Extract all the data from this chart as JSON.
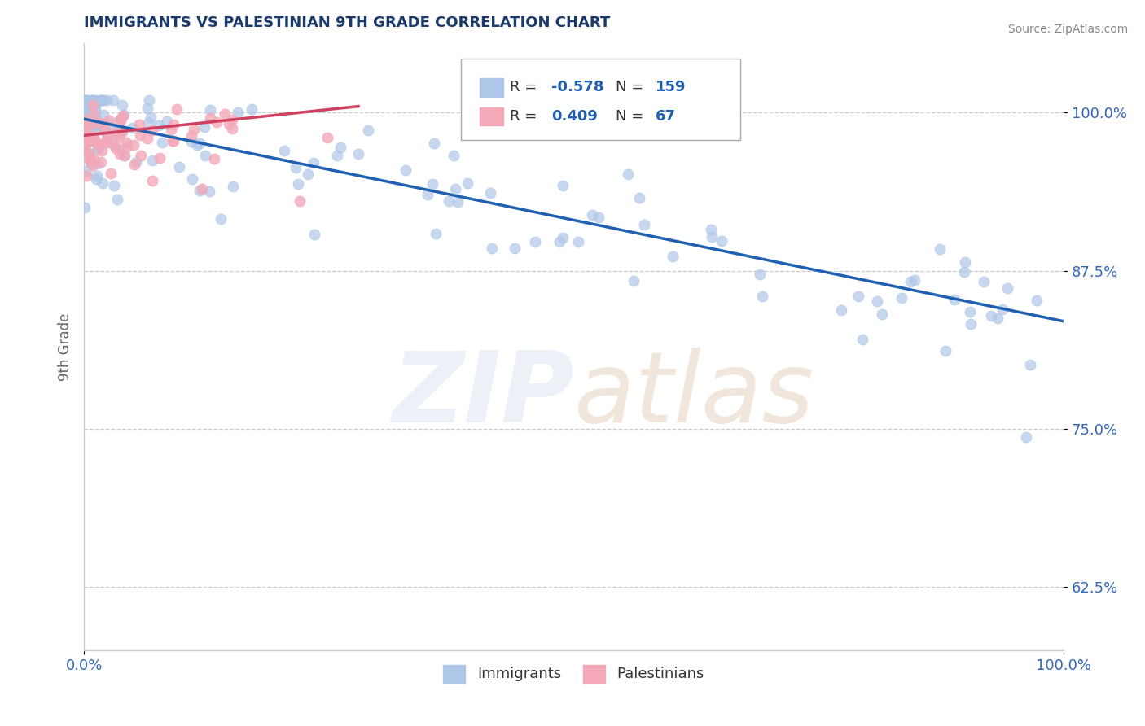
{
  "title": "IMMIGRANTS VS PALESTINIAN 9TH GRADE CORRELATION CHART",
  "source_text": "Source: ZipAtlas.com",
  "ylabel": "9th Grade",
  "xlim": [
    0.0,
    1.0
  ],
  "ylim": [
    0.575,
    1.055
  ],
  "yticks": [
    0.625,
    0.75,
    0.875,
    1.0
  ],
  "ytick_labels": [
    "62.5%",
    "75.0%",
    "87.5%",
    "100.0%"
  ],
  "xticks": [
    0.0,
    1.0
  ],
  "xtick_labels": [
    "0.0%",
    "100.0%"
  ],
  "blue_R": -0.578,
  "blue_N": 159,
  "pink_R": 0.409,
  "pink_N": 67,
  "blue_color": "#aec6e8",
  "pink_color": "#f4a8b8",
  "blue_line_color": "#2060b0",
  "pink_line_color": "#d04060",
  "blue_line_start_y": 0.995,
  "blue_line_end_y": 0.835,
  "pink_line_start_y": 0.982,
  "pink_line_end_x": 0.28,
  "pink_line_end_y": 1.005,
  "marker_size": 90,
  "background_color": "#ffffff",
  "grid_color": "#cccccc",
  "title_color": "#1a3a6b",
  "axis_label_color": "#666666",
  "tick_color": "#3366bb",
  "watermark_color": "#c8d8ea",
  "watermark_alpha": 0.35
}
